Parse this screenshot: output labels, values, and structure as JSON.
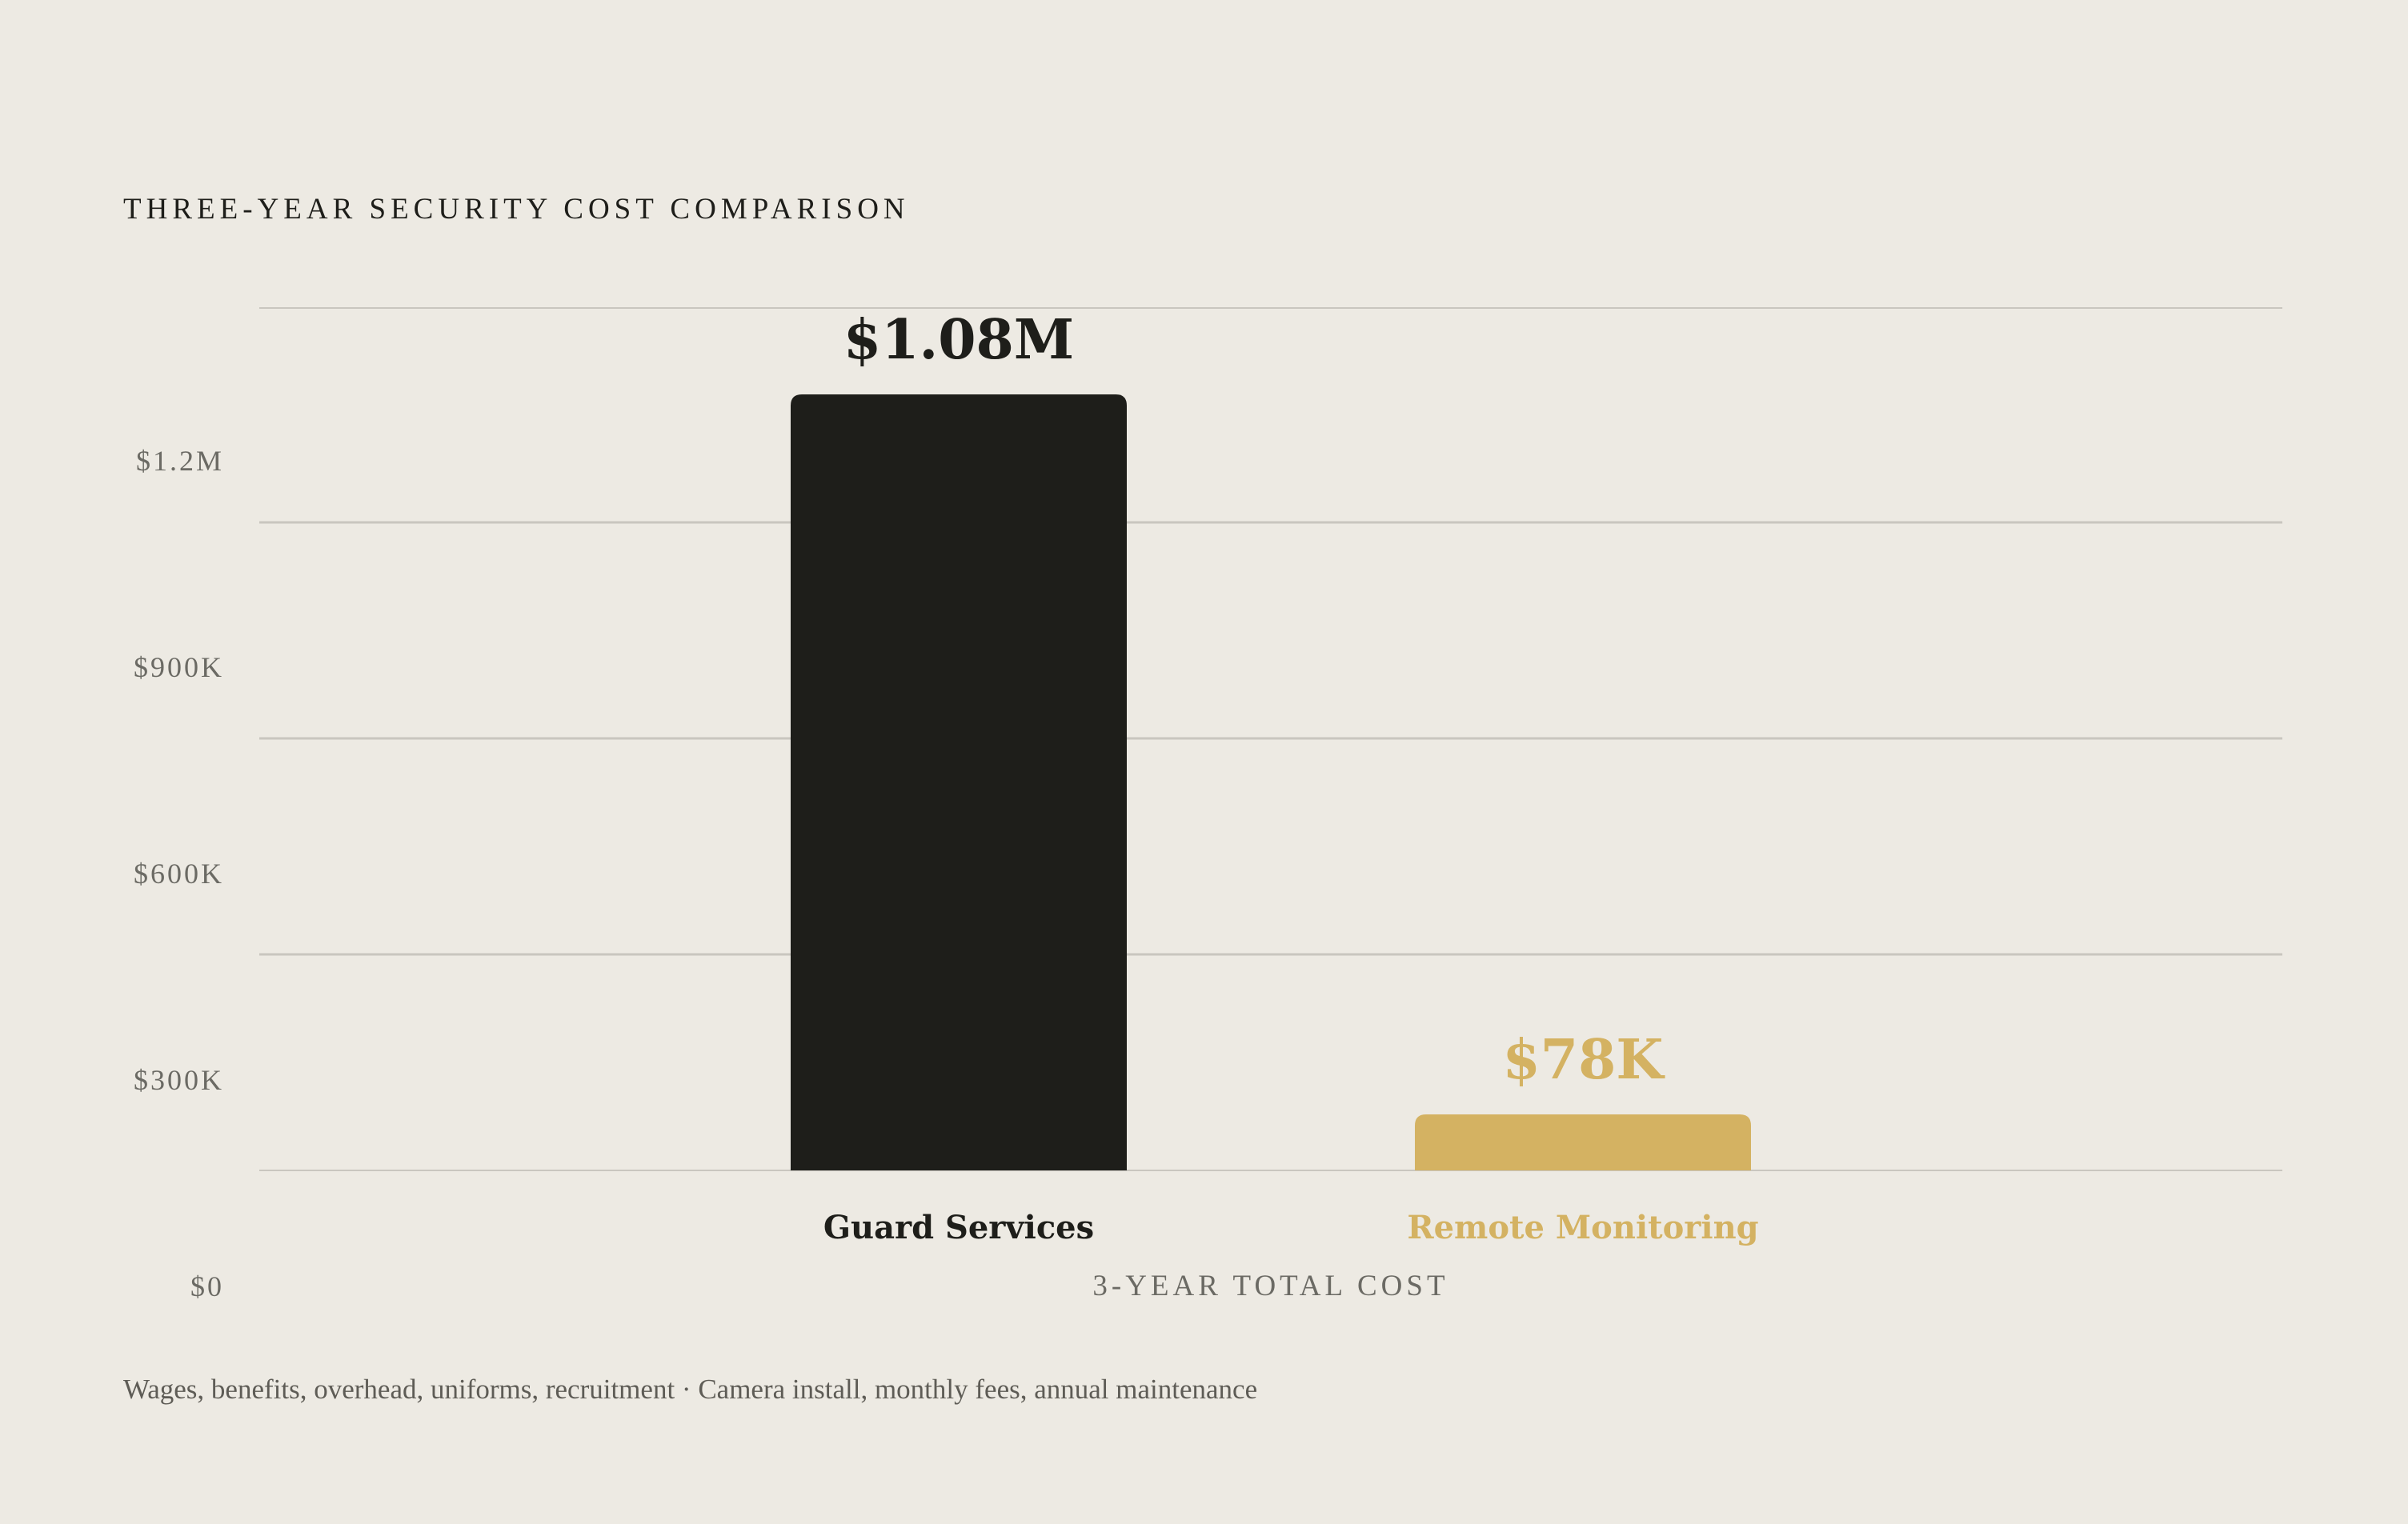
{
  "chart_data": {
    "type": "bar",
    "title": "THREE-YEAR SECURITY COST COMPARISON",
    "xlabel": "3-YEAR TOTAL COST",
    "ylabel": "",
    "categories": [
      "Guard Services",
      "Remote Monitoring"
    ],
    "values": [
      1080000,
      78000
    ],
    "value_labels": [
      "$1.08M",
      "$78K"
    ],
    "ylim": [
      0,
      1200000
    ],
    "y_ticks": [
      0,
      300000,
      600000,
      900000,
      1200000
    ],
    "y_tick_labels": [
      "$0",
      "$300K",
      "$600K",
      "$900K",
      "$1.2M"
    ],
    "bar_colors": [
      "#1e1e1a",
      "#d4b262"
    ],
    "grid": true,
    "legend": "none"
  },
  "footnote": "Wages, benefits, overhead, uniforms, recruitment · Camera install, monthly fees, annual maintenance",
  "colors": {
    "background": "#edeae3",
    "text_dark": "#1e1e1a",
    "text_muted": "#6b6a64",
    "gridline": "#c9c6bf",
    "accent_gold": "#d4b262"
  }
}
